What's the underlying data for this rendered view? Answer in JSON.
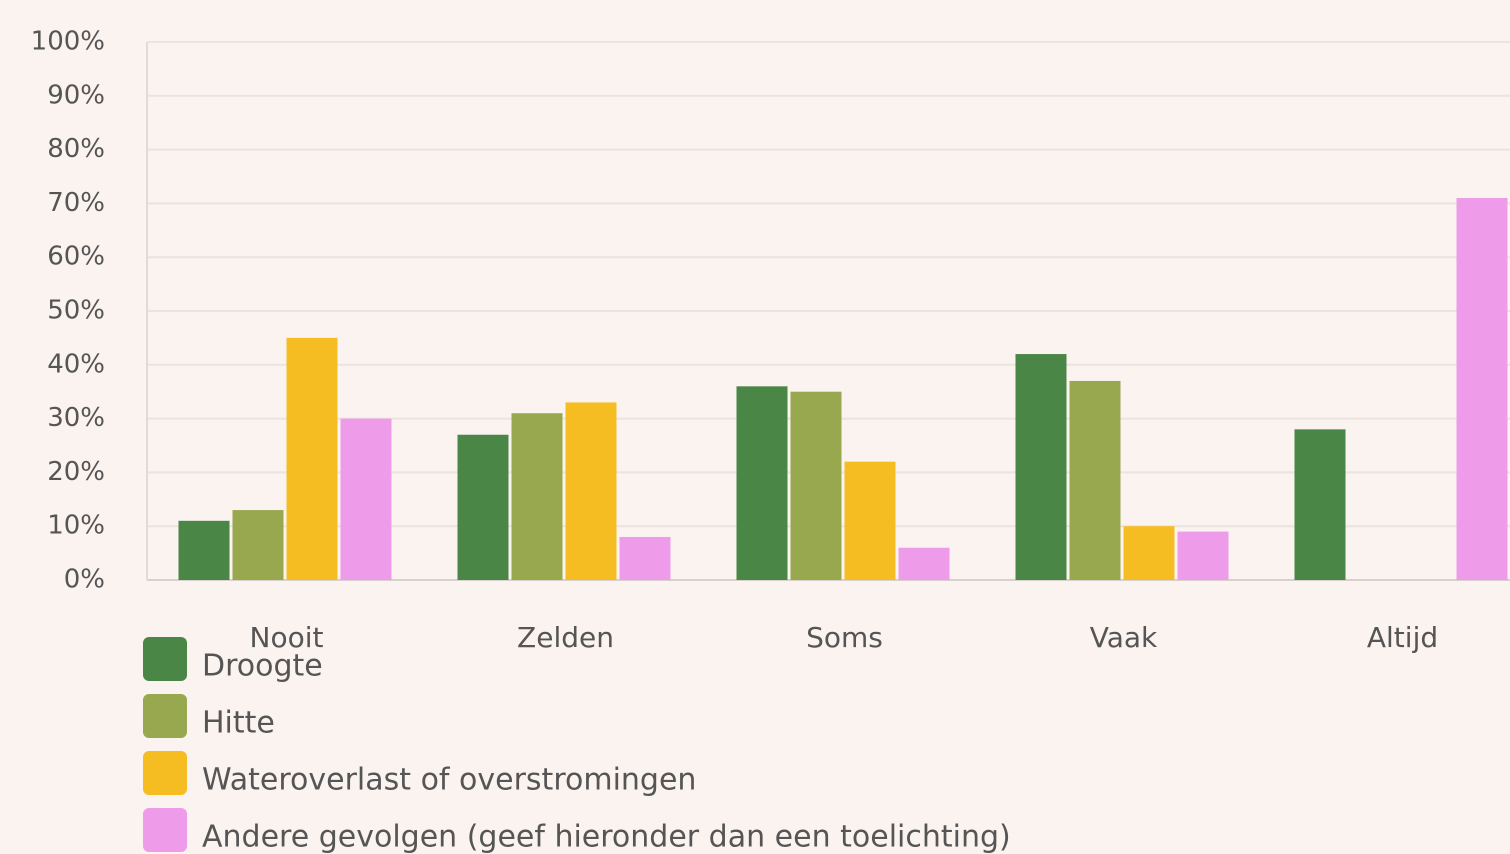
{
  "chart_data": {
    "type": "bar",
    "categories": [
      "Nooit",
      "Zelden",
      "Soms",
      "Vaak",
      "Altijd"
    ],
    "series": [
      {
        "name": "Droogte",
        "color": "#4a8746",
        "values": [
          11,
          27,
          36,
          42,
          28
        ]
      },
      {
        "name": "Hitte",
        "color": "#98a84e",
        "values": [
          13,
          31,
          35,
          37,
          0
        ]
      },
      {
        "name": "Wateroverlast of overstromingen",
        "color": "#f5bd22",
        "values": [
          45,
          33,
          22,
          10,
          0
        ]
      },
      {
        "name": "Andere gevolgen (geef hieronder dan een toelichting)",
        "color": "#ee9be9",
        "values": [
          30,
          8,
          6,
          9,
          71
        ]
      }
    ],
    "ylim": [
      0,
      100
    ],
    "yticks": [
      {
        "value": 0,
        "label": "0%"
      },
      {
        "value": 10,
        "label": "10%"
      },
      {
        "value": 20,
        "label": "20%"
      },
      {
        "value": 30,
        "label": "30%"
      },
      {
        "value": 40,
        "label": "40%"
      },
      {
        "value": 50,
        "label": "50%"
      },
      {
        "value": 60,
        "label": "60%"
      },
      {
        "value": 70,
        "label": "70%"
      },
      {
        "value": 80,
        "label": "80%"
      },
      {
        "value": 90,
        "label": "90%"
      },
      {
        "value": 100,
        "label": "100%"
      }
    ],
    "grid": true
  }
}
